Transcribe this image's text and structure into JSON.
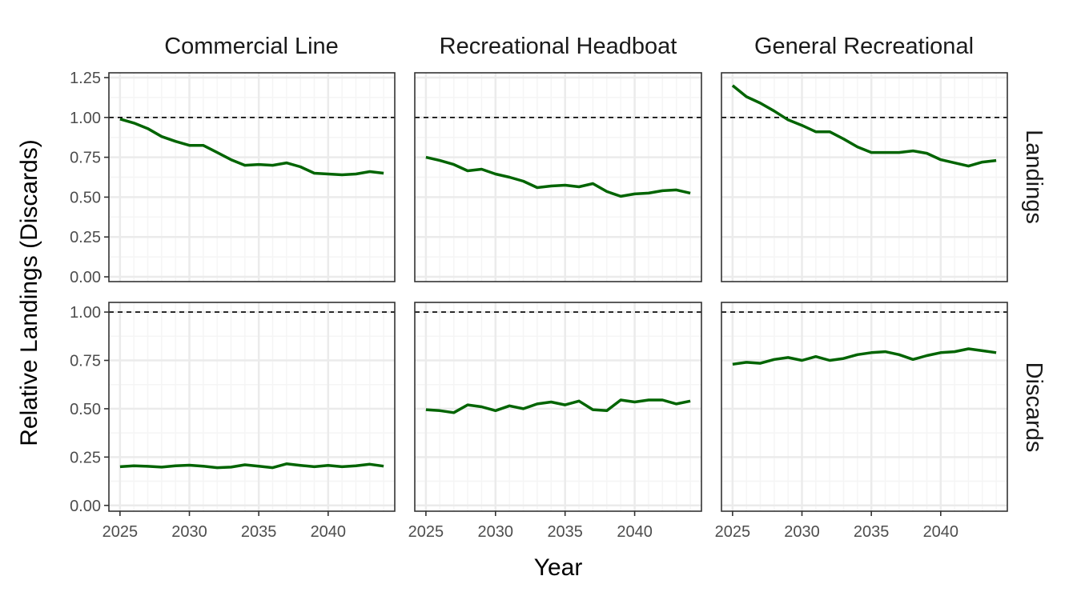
{
  "figure": {
    "ylabel": "Relative Landings (Discards)",
    "xlabel": "Year"
  },
  "columns": [
    "Commercial Line",
    "Recreational Headboat",
    "General Recreational"
  ],
  "rows": [
    "Landings",
    "Discards"
  ],
  "colors": {
    "line": "#006400",
    "reference": "#000000",
    "grid_major": "#ebebeb",
    "grid_minor": "#f5f5f5",
    "panel_border": "#333333"
  },
  "chart_data": {
    "type": "line",
    "facet": "grid",
    "reference_line": 1.0,
    "grid": true,
    "x": [
      2025,
      2026,
      2027,
      2028,
      2029,
      2030,
      2031,
      2032,
      2033,
      2034,
      2035,
      2036,
      2037,
      2038,
      2039,
      2040,
      2041,
      2042,
      2043,
      2044
    ],
    "xticks": [
      2025,
      2030,
      2035,
      2040
    ],
    "xlim": [
      2024.2,
      2044.8
    ],
    "panels": [
      {
        "row": "Landings",
        "col": "Commercial Line",
        "ylim": [
          -0.03,
          1.28
        ],
        "yticks": [
          0.0,
          0.25,
          0.5,
          0.75,
          1.0,
          1.25
        ],
        "ytick_labels": [
          "0.00",
          "0.25",
          "0.50",
          "0.75",
          "1.00",
          "1.25"
        ],
        "values": [
          0.99,
          0.965,
          0.93,
          0.88,
          0.85,
          0.825,
          0.825,
          0.78,
          0.735,
          0.7,
          0.705,
          0.7,
          0.715,
          0.69,
          0.65,
          0.645,
          0.64,
          0.645,
          0.66,
          0.65
        ]
      },
      {
        "row": "Landings",
        "col": "Recreational Headboat",
        "ylim": [
          -0.03,
          1.28
        ],
        "yticks": [
          0.0,
          0.25,
          0.5,
          0.75,
          1.0,
          1.25
        ],
        "values": [
          0.75,
          0.73,
          0.705,
          0.665,
          0.675,
          0.645,
          0.625,
          0.6,
          0.56,
          0.57,
          0.575,
          0.565,
          0.585,
          0.535,
          0.505,
          0.52,
          0.525,
          0.54,
          0.545,
          0.525
        ]
      },
      {
        "row": "Landings",
        "col": "General Recreational",
        "ylim": [
          -0.03,
          1.28
        ],
        "yticks": [
          0.0,
          0.25,
          0.5,
          0.75,
          1.0,
          1.25
        ],
        "values": [
          1.2,
          1.13,
          1.09,
          1.04,
          0.985,
          0.95,
          0.91,
          0.91,
          0.865,
          0.815,
          0.78,
          0.78,
          0.78,
          0.79,
          0.775,
          0.735,
          0.715,
          0.695,
          0.72,
          0.73
        ]
      },
      {
        "row": "Discards",
        "col": "Commercial Line",
        "ylim": [
          -0.03,
          1.05
        ],
        "yticks": [
          0.0,
          0.25,
          0.5,
          0.75,
          1.0
        ],
        "ytick_labels": [
          "0.00",
          "0.25",
          "0.50",
          "0.75",
          "1.00"
        ],
        "values": [
          0.2,
          0.205,
          0.202,
          0.198,
          0.205,
          0.208,
          0.203,
          0.195,
          0.198,
          0.21,
          0.203,
          0.195,
          0.215,
          0.207,
          0.2,
          0.207,
          0.2,
          0.205,
          0.213,
          0.203
        ]
      },
      {
        "row": "Discards",
        "col": "Recreational Headboat",
        "ylim": [
          -0.03,
          1.05
        ],
        "yticks": [
          0.0,
          0.25,
          0.5,
          0.75,
          1.0
        ],
        "values": [
          0.495,
          0.49,
          0.48,
          0.52,
          0.51,
          0.49,
          0.515,
          0.5,
          0.525,
          0.535,
          0.52,
          0.54,
          0.495,
          0.49,
          0.545,
          0.535,
          0.545,
          0.545,
          0.525,
          0.54
        ]
      },
      {
        "row": "Discards",
        "col": "General Recreational",
        "ylim": [
          -0.03,
          1.05
        ],
        "yticks": [
          0.0,
          0.25,
          0.5,
          0.75,
          1.0
        ],
        "values": [
          0.73,
          0.74,
          0.735,
          0.755,
          0.765,
          0.75,
          0.77,
          0.75,
          0.76,
          0.78,
          0.79,
          0.795,
          0.78,
          0.755,
          0.775,
          0.79,
          0.795,
          0.81,
          0.8,
          0.79
        ]
      }
    ]
  }
}
